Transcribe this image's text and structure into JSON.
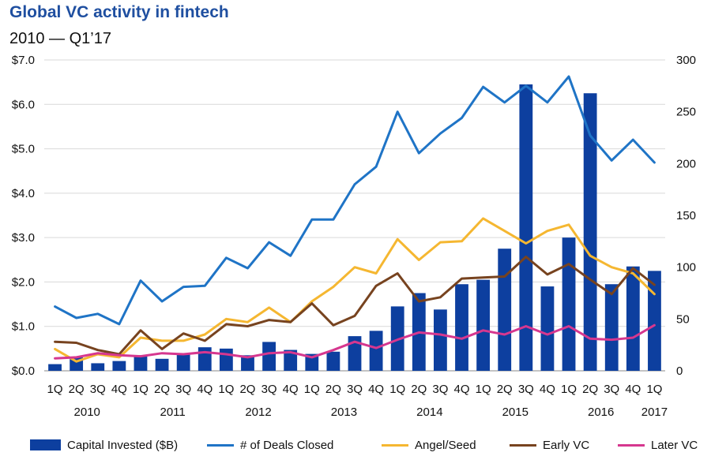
{
  "chart_data": {
    "type": "bar+line",
    "title": "Global VC activity in fintech",
    "subtitle": "2010 — Q1’17",
    "categories": [
      "1Q",
      "2Q",
      "3Q",
      "4Q",
      "1Q",
      "2Q",
      "3Q",
      "4Q",
      "1Q",
      "2Q",
      "3Q",
      "4Q",
      "1Q",
      "2Q",
      "3Q",
      "4Q",
      "1Q",
      "2Q",
      "3Q",
      "4Q",
      "1Q",
      "2Q",
      "3Q",
      "4Q",
      "1Q",
      "2Q",
      "3Q",
      "4Q",
      "1Q"
    ],
    "years": [
      {
        "label": "2010",
        "start": 0,
        "end": 3
      },
      {
        "label": "2011",
        "start": 4,
        "end": 7
      },
      {
        "label": "2012",
        "start": 8,
        "end": 11
      },
      {
        "label": "2013",
        "start": 12,
        "end": 15
      },
      {
        "label": "2014",
        "start": 16,
        "end": 19
      },
      {
        "label": "2015",
        "start": 20,
        "end": 23
      },
      {
        "label": "2016",
        "start": 24,
        "end": 27
      },
      {
        "label": "2017",
        "start": 28,
        "end": 28
      }
    ],
    "left_axis": {
      "ticks": [
        "$0.0",
        "$1.0",
        "$2.0",
        "$3.0",
        "$4.0",
        "$5.0",
        "$6.0",
        "$7.0"
      ],
      "ylim": [
        0,
        7
      ]
    },
    "right_axis": {
      "ticks": [
        "0",
        "50",
        "100",
        "150",
        "200",
        "250",
        "300"
      ],
      "ylim": [
        0,
        300
      ]
    },
    "bars": {
      "name": "Capital Invested ($B)",
      "color": "#0d3f9f",
      "values": [
        0.15,
        0.3,
        0.17,
        0.22,
        0.35,
        0.27,
        0.4,
        0.53,
        0.5,
        0.35,
        0.65,
        0.47,
        0.38,
        0.43,
        0.78,
        0.9,
        1.45,
        1.75,
        1.38,
        1.95,
        2.05,
        2.75,
        6.45,
        1.9,
        3.0,
        6.25,
        1.95,
        2.35,
        2.25
      ]
    },
    "series": [
      {
        "name": "# of Deals Closed",
        "color": "#1f74c6",
        "axis": "right",
        "values": [
          62,
          51,
          55,
          45,
          87,
          67,
          81,
          82,
          109,
          99,
          124,
          111,
          146,
          146,
          180,
          197,
          250,
          210,
          229,
          244,
          274,
          259,
          275,
          259,
          284,
          227,
          203,
          223,
          201
        ]
      },
      {
        "name": "Angel/Seed",
        "color": "#f5b731",
        "axis": "right",
        "values": [
          21,
          9,
          16,
          13,
          32,
          29,
          29,
          35,
          50,
          47,
          61,
          47,
          67,
          81,
          100,
          94,
          127,
          107,
          124,
          125,
          147,
          135,
          123,
          135,
          141,
          111,
          100,
          94,
          74
        ]
      },
      {
        "name": "Early VC",
        "color": "#77431f",
        "axis": "right",
        "values": [
          28,
          27,
          20,
          16,
          39,
          21,
          36,
          29,
          45,
          43,
          49,
          47,
          65,
          44,
          53,
          82,
          94,
          67,
          71,
          89,
          90,
          91,
          110,
          93,
          103,
          88,
          74,
          99,
          83
        ]
      },
      {
        "name": "Later VC",
        "color": "#d6378f",
        "axis": "right",
        "values": [
          12,
          13,
          17,
          15,
          14,
          17,
          16,
          18,
          16,
          13,
          17,
          18,
          13,
          20,
          28,
          22,
          30,
          37,
          35,
          31,
          39,
          35,
          43,
          35,
          43,
          31,
          30,
          32,
          44
        ]
      }
    ],
    "legend": [
      "Capital Invested ($B)",
      "# of Deals Closed",
      "Angel/Seed",
      "Early VC",
      "Later VC"
    ],
    "legend_position": "bottom",
    "grid": true
  }
}
